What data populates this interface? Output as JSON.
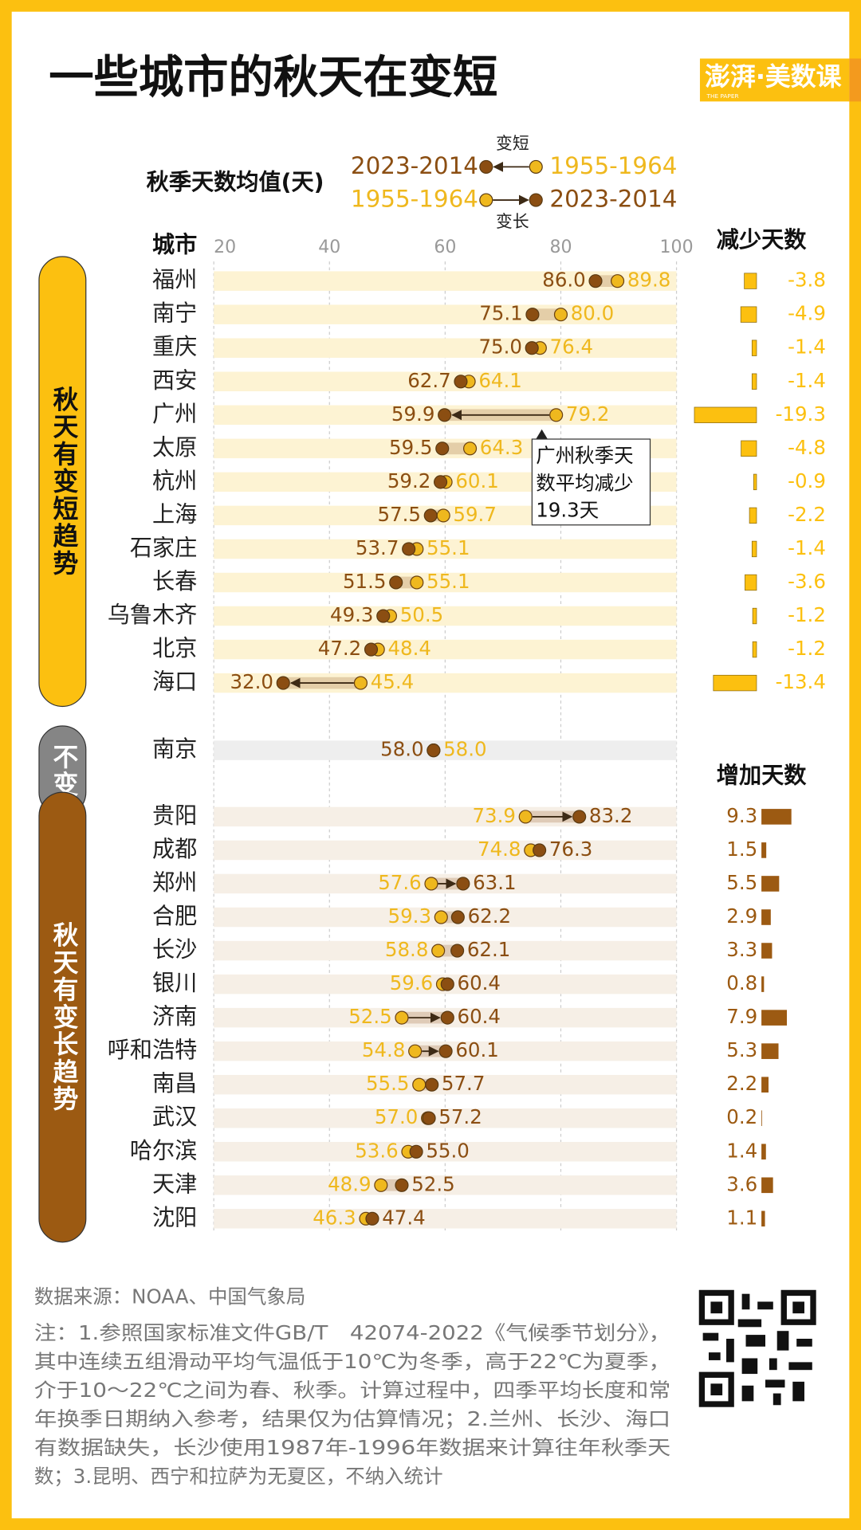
{
  "chart_data": {
    "type": "dumbbell",
    "title": "一些城市的秋天在变短",
    "logo": "澎湃·美数课",
    "logo_subtitle": "THE PAPER",
    "legend": {
      "title": "秋季天数均值(天)",
      "shorter": "变短",
      "longer": "变长"
    },
    "series": [
      {
        "name": "2023-2014",
        "color": "#8b4e12"
      },
      {
        "name": "1955-1964",
        "color": "#efb81e"
      }
    ],
    "category_header": "城市",
    "xlim": [
      20,
      100
    ],
    "xticks": [
      20,
      40,
      60,
      80,
      100
    ],
    "grid": true,
    "groups": [
      {
        "label": "秋天有变短趋势",
        "color": "#fcc010",
        "label_color": "#111111",
        "stripe": "#fdf3d3",
        "change_label": "减少天数",
        "categories": [
          "福州",
          "南宁",
          "重庆",
          "西安",
          "广州",
          "太原",
          "杭州",
          "上海",
          "石家庄",
          "长春",
          "乌鲁木齐",
          "北京",
          "海口"
        ],
        "recent": [
          86.0,
          75.1,
          75.0,
          62.7,
          59.9,
          59.5,
          59.2,
          57.5,
          53.7,
          51.5,
          49.3,
          47.2,
          32.0
        ],
        "recent_labels": [
          "86.0",
          "75.1",
          "75.0",
          "62.7",
          "59.9",
          "59.5",
          "59.2",
          "57.5",
          "53.7",
          "51.5",
          "49.3",
          "47.2",
          "32.0"
        ],
        "past": [
          89.8,
          80.0,
          76.4,
          64.1,
          79.2,
          64.3,
          60.1,
          59.7,
          55.1,
          55.1,
          50.5,
          48.4,
          45.4
        ],
        "past_labels": [
          "89.8",
          "80.0",
          "76.4",
          "64.1",
          "79.2",
          "64.3",
          "60.1",
          "59.7",
          "55.1",
          "55.1",
          "50.5",
          "48.4",
          "45.4"
        ],
        "change": [
          -3.8,
          -4.9,
          -1.4,
          -1.4,
          -19.3,
          -4.8,
          -0.9,
          -2.2,
          -1.4,
          -3.6,
          -1.2,
          -1.2,
          -13.4
        ]
      },
      {
        "label": "不变",
        "color": "#858585",
        "label_color": "#ffffff",
        "stripe": "#eeeeee",
        "categories": [
          "南京"
        ],
        "recent": [
          58.0
        ],
        "recent_labels": [
          "58.0"
        ],
        "past": [
          58.0
        ],
        "past_labels": [
          "58.0"
        ]
      },
      {
        "label": "秋天有变长趋势",
        "color": "#9c5a12",
        "label_color": "#ffffff",
        "stripe": "#f6efe6",
        "change_label": "增加天数",
        "categories": [
          "贵阳",
          "成都",
          "郑州",
          "合肥",
          "长沙",
          "银川",
          "济南",
          "呼和浩特",
          "南昌",
          "武汉",
          "哈尔滨",
          "天津",
          "沈阳"
        ],
        "recent": [
          83.2,
          76.3,
          63.1,
          62.2,
          62.1,
          60.4,
          60.4,
          60.1,
          57.7,
          57.2,
          55.0,
          52.5,
          47.4
        ],
        "recent_labels": [
          "83.2",
          "76.3",
          "63.1",
          "62.2",
          "62.1",
          "60.4",
          "60.4",
          "60.1",
          "57.7",
          "57.2",
          "55.0",
          "52.5",
          "47.4"
        ],
        "past": [
          73.9,
          74.8,
          57.6,
          59.3,
          58.8,
          59.6,
          52.5,
          54.8,
          55.5,
          57.0,
          53.6,
          48.9,
          46.3
        ],
        "past_labels": [
          "73.9",
          "74.8",
          "57.6",
          "59.3",
          "58.8",
          "59.6",
          "52.5",
          "54.8",
          "55.5",
          "57.0",
          "53.6",
          "48.9",
          "46.3"
        ],
        "change": [
          9.3,
          1.5,
          5.5,
          2.9,
          3.3,
          0.8,
          7.9,
          5.3,
          2.2,
          0.2,
          1.4,
          3.6,
          1.1
        ]
      }
    ],
    "annotation": {
      "lines": [
        "广州秋季天",
        "数平均减少",
        "19.3天"
      ]
    },
    "source": "数据来源：NOAA、中国气象局",
    "note": [
      "注：1.参照国家标准文件GB/T　42074-2022《气候季节划分》，",
      "其中连续五组滑动平均气温低于10℃为冬季，高于22℃为夏季，",
      "介于10～22℃之间为春、秋季。计算过程中，四季平均长度和常",
      "年换季日期纳入参考，结果仅为估算情况；2.兰州、长沙、海口",
      "有数据缺失，长沙使用1987年-1996年数据来计算往年秋季天",
      "数；3.昆明、西宁和拉萨为无夏区，不纳入统计"
    ]
  }
}
